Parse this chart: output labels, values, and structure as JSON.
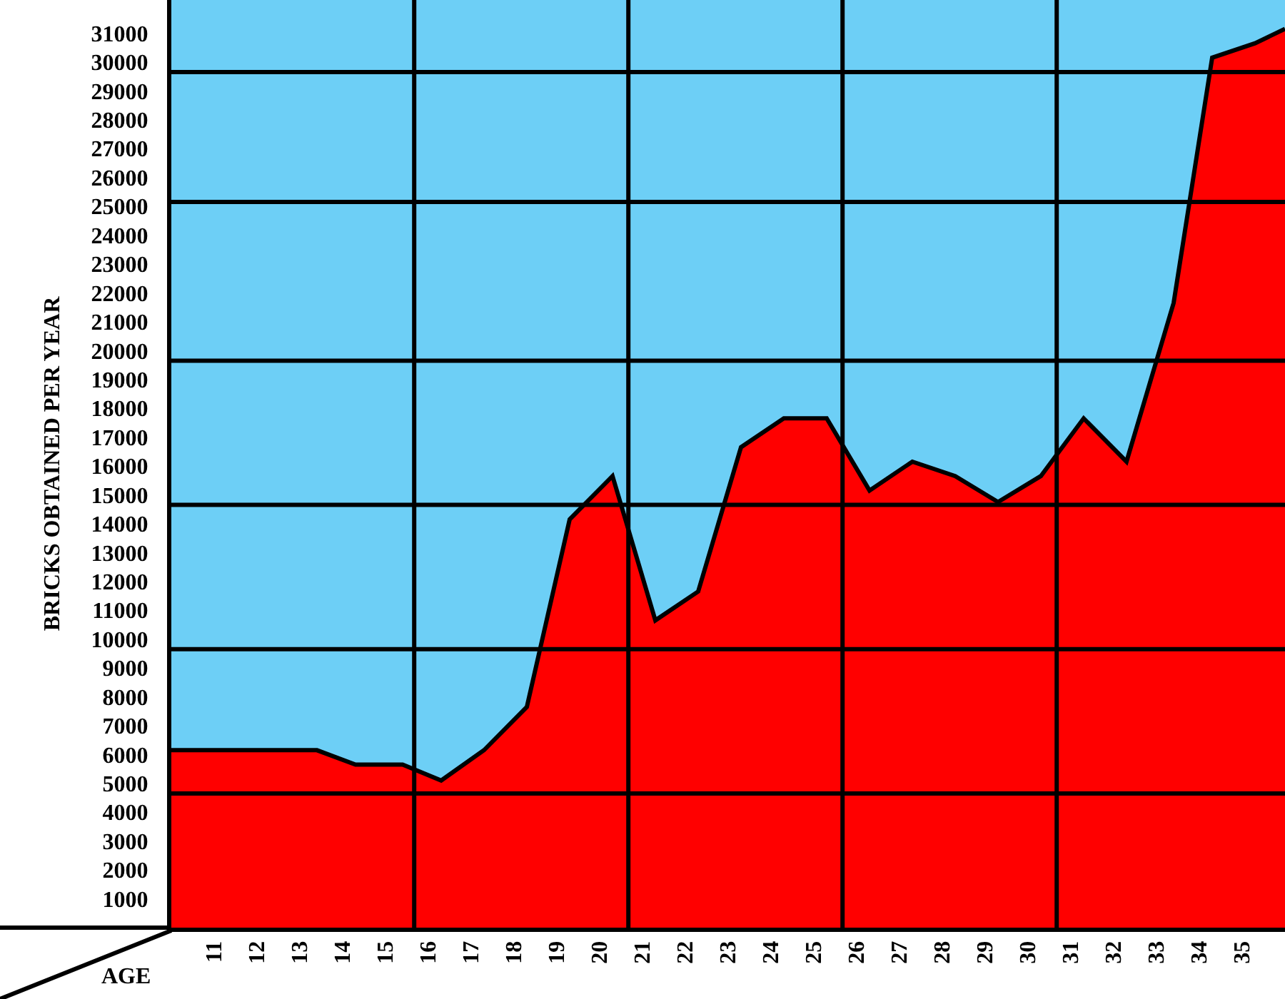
{
  "chart_data": {
    "type": "area",
    "xlabel": "AGE",
    "ylabel": "BRICKS OBTAINED PER YEAR",
    "x": [
      10,
      13.4,
      14.3,
      15.4,
      16.3,
      17.3,
      18.3,
      19.3,
      20.3,
      21.3,
      22.3,
      23.3,
      24.3,
      25.3,
      26.3,
      27.3,
      28.3,
      29.3,
      30.3,
      31.3,
      32.3,
      33.4,
      34.3,
      35.3,
      36
    ],
    "series": [
      {
        "color": "#ff0000",
        "values": [
          6150,
          6150,
          5650,
          5650,
          5100,
          6150,
          7650,
          14150,
          15650,
          10650,
          11650,
          16650,
          17650,
          17650,
          15150,
          16150,
          15650,
          14750,
          15650,
          17650,
          16150,
          21650,
          30150,
          30650,
          31150
        ]
      }
    ],
    "xlim": [
      10,
      36
    ],
    "ylim": [
      0,
      32150
    ],
    "xticks": [
      11,
      12,
      13,
      14,
      15,
      16,
      17,
      18,
      19,
      20,
      21,
      22,
      23,
      24,
      25,
      26,
      27,
      28,
      29,
      30,
      31,
      32,
      33,
      34,
      35
    ],
    "yticks": [
      1000,
      2000,
      3000,
      4000,
      5000,
      6000,
      7000,
      8000,
      9000,
      10000,
      11000,
      12000,
      13000,
      14000,
      15000,
      16000,
      17000,
      18000,
      19000,
      20000,
      21000,
      22000,
      23000,
      24000,
      25000,
      26000,
      27000,
      28000,
      29000,
      30000,
      31000
    ],
    "ref_lines": [
      {
        "axis": "y",
        "value": 4650
      },
      {
        "axis": "y",
        "value": 9650
      },
      {
        "axis": "y",
        "value": 14650
      },
      {
        "axis": "y",
        "value": 19650
      },
      {
        "axis": "y",
        "value": 25150
      },
      {
        "axis": "y",
        "value": 29650
      },
      {
        "axis": "x",
        "value": 15.67
      },
      {
        "axis": "x",
        "value": 20.67
      },
      {
        "axis": "x",
        "value": 25.67
      },
      {
        "axis": "x",
        "value": 30.67
      }
    ],
    "marker": "none",
    "line_style": "solid"
  }
}
